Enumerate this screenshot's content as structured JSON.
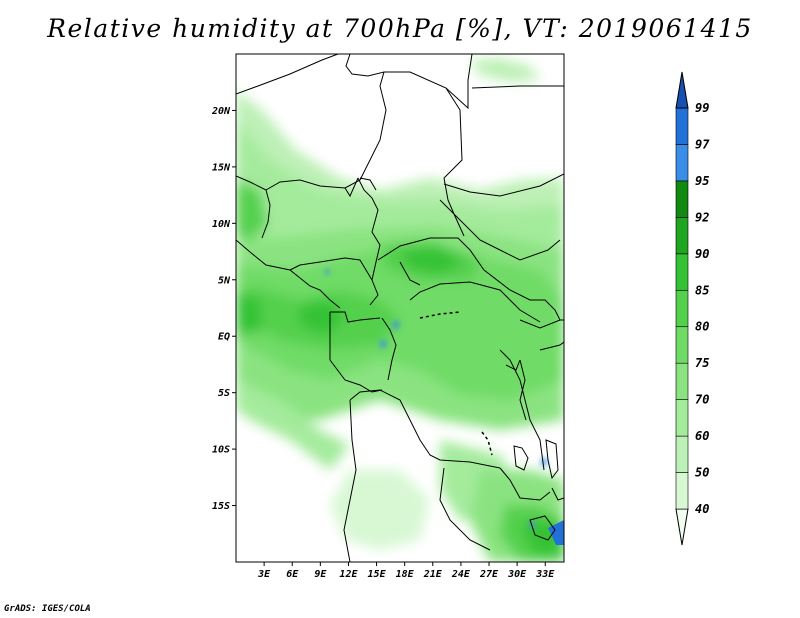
{
  "title": "Relative humidity at 700hPa [%], VT: 2019061415",
  "credit": "GrADS: IGES/COLA",
  "map": {
    "lon_range": [
      0,
      35
    ],
    "lat_range": [
      -20,
      25
    ],
    "lat_ticks": [
      {
        "value": 20,
        "label": "20N"
      },
      {
        "value": 15,
        "label": "15N"
      },
      {
        "value": 10,
        "label": "10N"
      },
      {
        "value": 5,
        "label": "5N"
      },
      {
        "value": 0,
        "label": "EQ"
      },
      {
        "value": -5,
        "label": "5S"
      },
      {
        "value": -10,
        "label": "10S"
      },
      {
        "value": -15,
        "label": "15S"
      }
    ],
    "lon_ticks": [
      {
        "value": 3,
        "label": "3E"
      },
      {
        "value": 6,
        "label": "6E"
      },
      {
        "value": 9,
        "label": "9E"
      },
      {
        "value": 12,
        "label": "12E"
      },
      {
        "value": 15,
        "label": "15E"
      },
      {
        "value": 18,
        "label": "18E"
      },
      {
        "value": 21,
        "label": "21E"
      },
      {
        "value": 24,
        "label": "24E"
      },
      {
        "value": 27,
        "label": "27E"
      },
      {
        "value": 30,
        "label": "30E"
      },
      {
        "value": 33,
        "label": "33E"
      }
    ]
  },
  "colorbar": {
    "levels": [
      "40",
      "50",
      "60",
      "70",
      "75",
      "80",
      "85",
      "90",
      "92",
      "95",
      "97",
      "99"
    ],
    "colors": [
      "#f0fff0",
      "#d8f8d4",
      "#bdf0b6",
      "#a4eb9c",
      "#8ae380",
      "#6fdb66",
      "#55d04d",
      "#36c235",
      "#1fa51f",
      "#128a12",
      "#3b8ee8",
      "#2271d8",
      "#1650b0"
    ]
  },
  "colors": {
    "land_base": "#e9fbe5",
    "border": "#000000"
  }
}
